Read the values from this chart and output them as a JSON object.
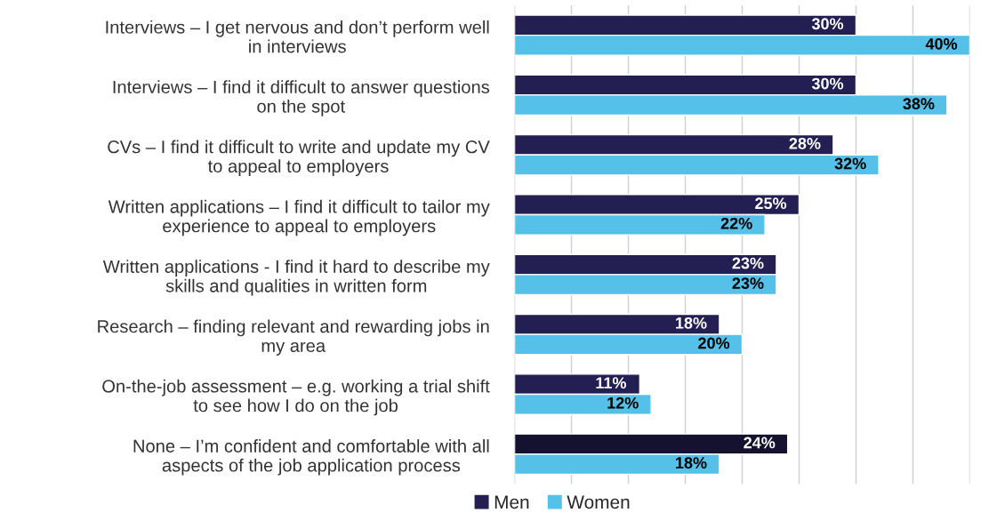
{
  "chart_data": {
    "type": "bar",
    "orientation": "horizontal",
    "categories": [
      "Interviews – I get nervous and don’t perform well\nin interviews",
      "Interviews – I find it difficult to answer questions\non the spot",
      "CVs – I find it difficult to write and update my CV\nto appeal to employers",
      "Written applications – I find it difficult to tailor my\nexperience to appeal to employers",
      "Written applications - I find it hard to describe my\nskills and qualities in written form",
      "Research – finding relevant and rewarding jobs in\nmy area",
      "On-the-job assessment – e.g. working a trial shift\nto see how I do on the job",
      "None – I’m confident and comfortable with all\naspects of the job application process"
    ],
    "series": [
      {
        "name": "Men",
        "color": "#231f52",
        "colors": [
          "#231f52",
          "#231f52",
          "#231f52",
          "#231f52",
          "#231f52",
          "#231f52",
          "#231f52",
          "#15122f"
        ],
        "values": [
          30,
          30,
          28,
          25,
          23,
          18,
          11,
          24
        ],
        "value_labels": [
          "30%",
          "30%",
          "28%",
          "25%",
          "23%",
          "18%",
          "11%",
          "24%"
        ]
      },
      {
        "name": "Women",
        "color": "#55c1e8",
        "values": [
          40,
          38,
          32,
          22,
          23,
          20,
          12,
          18
        ],
        "value_labels": [
          "40%",
          "38%",
          "32%",
          "22%",
          "23%",
          "20%",
          "12%",
          "18%"
        ]
      }
    ],
    "xlim": [
      0,
      40
    ],
    "xticks": [
      {
        "value": 0,
        "label": null
      },
      {
        "value": 5,
        "label": null
      },
      {
        "value": 10,
        "label": null
      },
      {
        "value": 15,
        "label": null
      },
      {
        "value": 20,
        "label": null
      },
      {
        "value": 25,
        "label": null
      },
      {
        "value": 30,
        "label": null
      },
      {
        "value": 35,
        "label": null
      },
      {
        "value": 40,
        "label": null
      }
    ],
    "grid": "x",
    "tick_labels": "y",
    "legend": "bottom"
  }
}
